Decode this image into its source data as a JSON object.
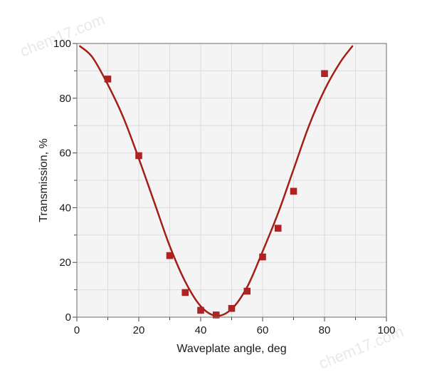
{
  "watermark_top": "chem17.com",
  "watermark_bottom": "chem17.com",
  "chart_data": {
    "type": "scatter",
    "title": "",
    "xlabel": "Waveplate angle, deg",
    "ylabel": "Transmission, %",
    "xlim": [
      0,
      100
    ],
    "ylim": [
      0,
      100
    ],
    "xticks": [
      0,
      20,
      40,
      60,
      80,
      100
    ],
    "yticks": [
      0,
      20,
      40,
      60,
      80,
      100
    ],
    "xtick_labels": [
      "0",
      "20",
      "40",
      "60",
      "80",
      "100"
    ],
    "ytick_labels": [
      "0",
      "20",
      "40",
      "60",
      "80",
      "100"
    ],
    "grid": true,
    "legend": "none",
    "series": [
      {
        "kind": "markers",
        "marker": "square",
        "color": "#b22222",
        "x": [
          10,
          20,
          30,
          35,
          40,
          45,
          50,
          55,
          60,
          65,
          70,
          80
        ],
        "y": [
          87,
          59,
          22.5,
          9,
          2.5,
          0.8,
          3.2,
          9.5,
          22,
          32.5,
          46,
          89
        ]
      },
      {
        "kind": "line",
        "style": "smooth fit",
        "color": "#a21e16",
        "x": [
          1,
          5,
          10,
          15,
          20,
          25,
          30,
          35,
          40,
          45,
          50,
          55,
          60,
          65,
          70,
          75,
          80,
          85,
          89
        ],
        "y": [
          99,
          95,
          85,
          73,
          58,
          42,
          26,
          13,
          4,
          0.5,
          3,
          11,
          24,
          38,
          54,
          70,
          83,
          93,
          99
        ]
      }
    ]
  }
}
